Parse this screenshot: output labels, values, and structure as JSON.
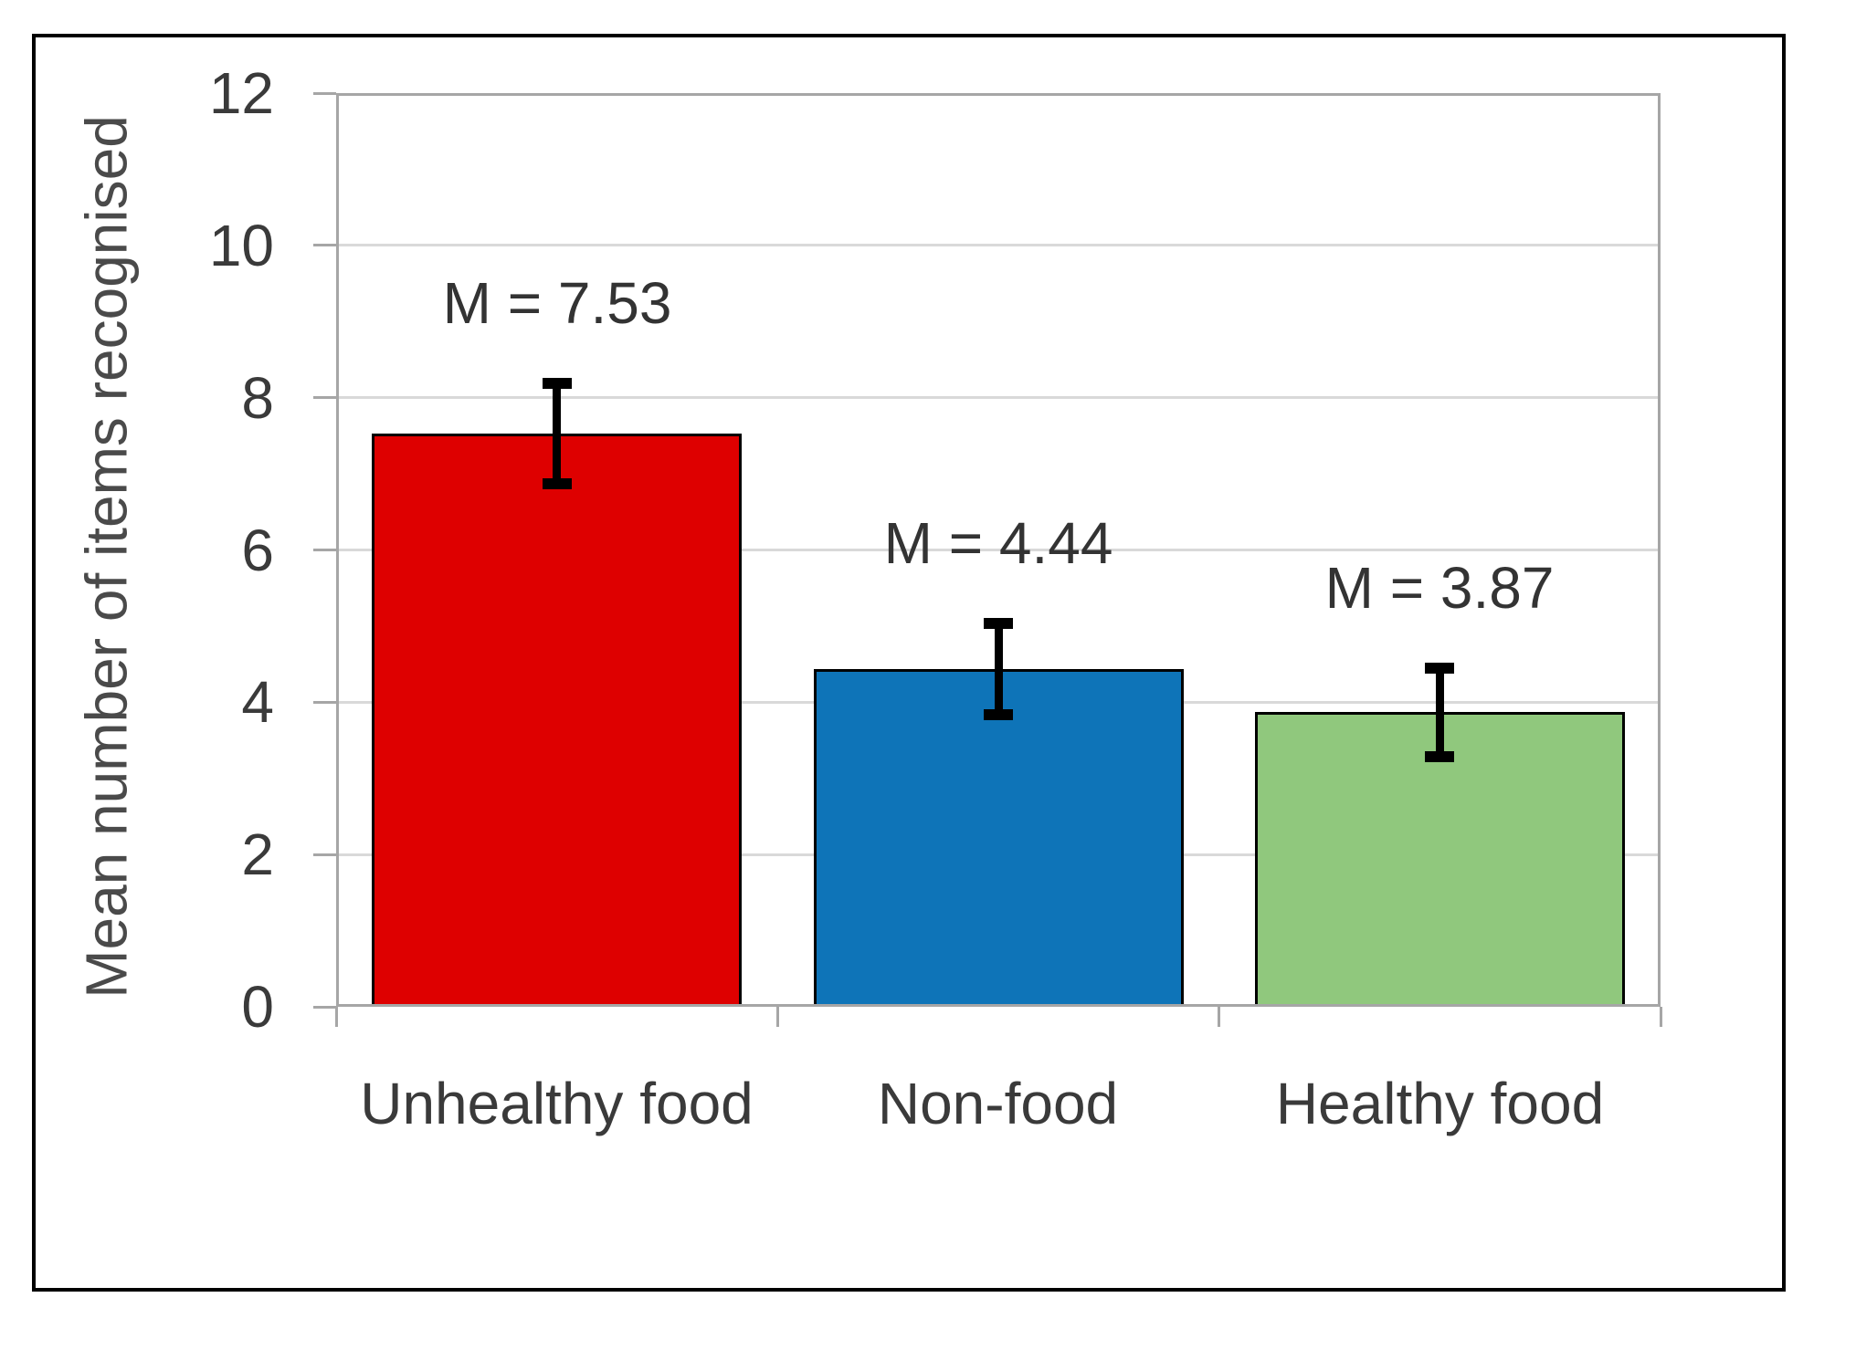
{
  "chart_data": {
    "type": "bar",
    "title": "",
    "xlabel": "",
    "ylabel": "Mean number of items recognised",
    "categories": [
      "Unhealthy food",
      "Non-food",
      "Healthy food"
    ],
    "values": [
      7.53,
      4.44,
      3.87
    ],
    "errors": [
      0.66,
      0.6,
      0.58
    ],
    "bar_labels": [
      "M = 7.53",
      "M = 4.44",
      "M = 3.87"
    ],
    "bar_colors": [
      "#de0000",
      "#0e74b8",
      "#90c87d"
    ],
    "bar_border_color": "#000000",
    "error_bar_color": "#000000",
    "ylim": [
      0,
      12
    ],
    "yticks": [
      0,
      2,
      4,
      6,
      8,
      10,
      12
    ],
    "ytick_labels": [
      "0",
      "2",
      "4",
      "6",
      "8",
      "10",
      "12"
    ],
    "grid": "horizontal",
    "legend": "none",
    "colors": {
      "gridline": "#d9d9d9",
      "axis": "#a6a6a6",
      "tick_label": "#3a3a3a",
      "value_label": "#333333",
      "axis_title": "#4a4a4a",
      "outer_border": "#000000",
      "background": "#ffffff"
    }
  }
}
